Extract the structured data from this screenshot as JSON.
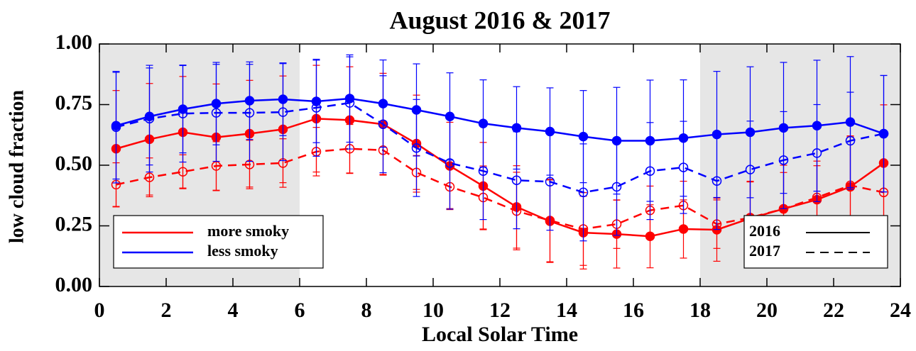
{
  "chart_data": {
    "type": "line",
    "title": "August 2016 & 2017",
    "xlabel": "Local Solar Time",
    "ylabel": "low cloud fraction",
    "x": [
      0.5,
      1.5,
      2.5,
      3.5,
      4.5,
      5.5,
      6.5,
      7.5,
      8.5,
      9.5,
      10.5,
      11.5,
      12.5,
      13.5,
      14.5,
      15.5,
      16.5,
      17.5,
      18.5,
      19.5,
      20.5,
      21.5,
      22.5,
      23.5
    ],
    "xlim": [
      0,
      24
    ],
    "xticks": [
      0,
      2,
      4,
      6,
      8,
      10,
      12,
      14,
      16,
      18,
      20,
      22,
      24
    ],
    "ylim": [
      0,
      1
    ],
    "yticks": [
      {
        "value": 0,
        "label": "0.00"
      },
      {
        "value": 0.25,
        "label": "0.25"
      },
      {
        "value": 0.5,
        "label": "0.50"
      },
      {
        "value": 0.75,
        "label": "0.75"
      },
      {
        "value": 1,
        "label": "1.00"
      }
    ],
    "shaded": [
      [
        0,
        6
      ],
      [
        18,
        24
      ]
    ],
    "years": [
      {
        "name": "2016",
        "dash": "solid",
        "marker": "filled"
      },
      {
        "name": "2017",
        "dash": "dashed",
        "marker": "open"
      }
    ],
    "series": [
      {
        "name": "more smoky",
        "color": "#ff0000",
        "years": [
          {
            "values": [
              0.568,
              0.607,
              0.636,
              0.615,
              0.63,
              0.648,
              0.692,
              0.686,
              0.669,
              0.589,
              0.497,
              0.414,
              0.328,
              0.269,
              0.222,
              0.216,
              0.207,
              0.237,
              0.234,
              0.281,
              0.32,
              0.358,
              0.411,
              0.509
            ],
            "errors": [
              0.24,
              0.23,
              0.23,
              0.22,
              0.22,
              0.22,
              0.22,
              0.22,
              0.21,
              0.2,
              0.18,
              0.18,
              0.17,
              0.17,
              0.15,
              0.14,
              0.13,
              0.12,
              0.13,
              0.15,
              0.18,
              0.14,
              0.21,
              0.24
            ]
          },
          {
            "values": [
              0.42,
              0.45,
              0.473,
              0.497,
              0.503,
              0.509,
              0.556,
              0.568,
              0.562,
              0.47,
              0.411,
              0.367,
              0.311,
              0.272,
              0.237,
              0.257,
              0.314,
              0.334,
              0.257,
              0.284,
              0.32,
              0.367,
              0.417,
              0.388
            ],
            "errors": [
              0.09,
              0.08,
              0.07,
              0.1,
              0.1,
              0.1,
              0.1,
              0.1,
              0.1,
              0.07,
              0.09,
              0.13,
              0.16,
              0.17,
              0.15,
              0.1,
              0.1,
              0.1,
              0.1,
              0.15,
              0.15,
              0.15,
              0.2,
              0.12
            ]
          }
        ]
      },
      {
        "name": "less smoky",
        "color": "#0000ff",
        "years": [
          {
            "values": [
              0.663,
              0.701,
              0.731,
              0.754,
              0.766,
              0.772,
              0.763,
              0.775,
              0.754,
              0.728,
              0.701,
              0.672,
              0.654,
              0.639,
              0.618,
              0.601,
              0.601,
              0.612,
              0.627,
              0.636,
              0.654,
              0.663,
              0.678,
              0.63
            ],
            "errors": [
              0.22,
              0.2,
              0.18,
              0.17,
              0.16,
              0.15,
              0.17,
              0.18,
              0.18,
              0.19,
              0.18,
              0.18,
              0.17,
              0.18,
              0.19,
              0.22,
              0.25,
              0.24,
              0.26,
              0.27,
              0.27,
              0.27,
              0.27,
              0.24
            ]
          },
          {
            "values": [
              0.657,
              0.692,
              0.713,
              0.716,
              0.716,
              0.719,
              0.737,
              0.757,
              0.669,
              0.571,
              0.509,
              0.476,
              0.438,
              0.432,
              0.388,
              0.411,
              0.476,
              0.491,
              0.435,
              0.482,
              0.521,
              0.55,
              0.601,
              0.63
            ],
            "errors": [
              0.23,
              0.22,
              0.2,
              0.2,
              0.2,
              0.2,
              0.2,
              0.19,
              0.2,
              0.2,
              0.19,
              0.2,
              0.2,
              0.2,
              0.2,
              0.2,
              0.2,
              0.19,
              0.2,
              0.2,
              0.2,
              0.2,
              0.2,
              0.24
            ]
          }
        ]
      }
    ]
  }
}
